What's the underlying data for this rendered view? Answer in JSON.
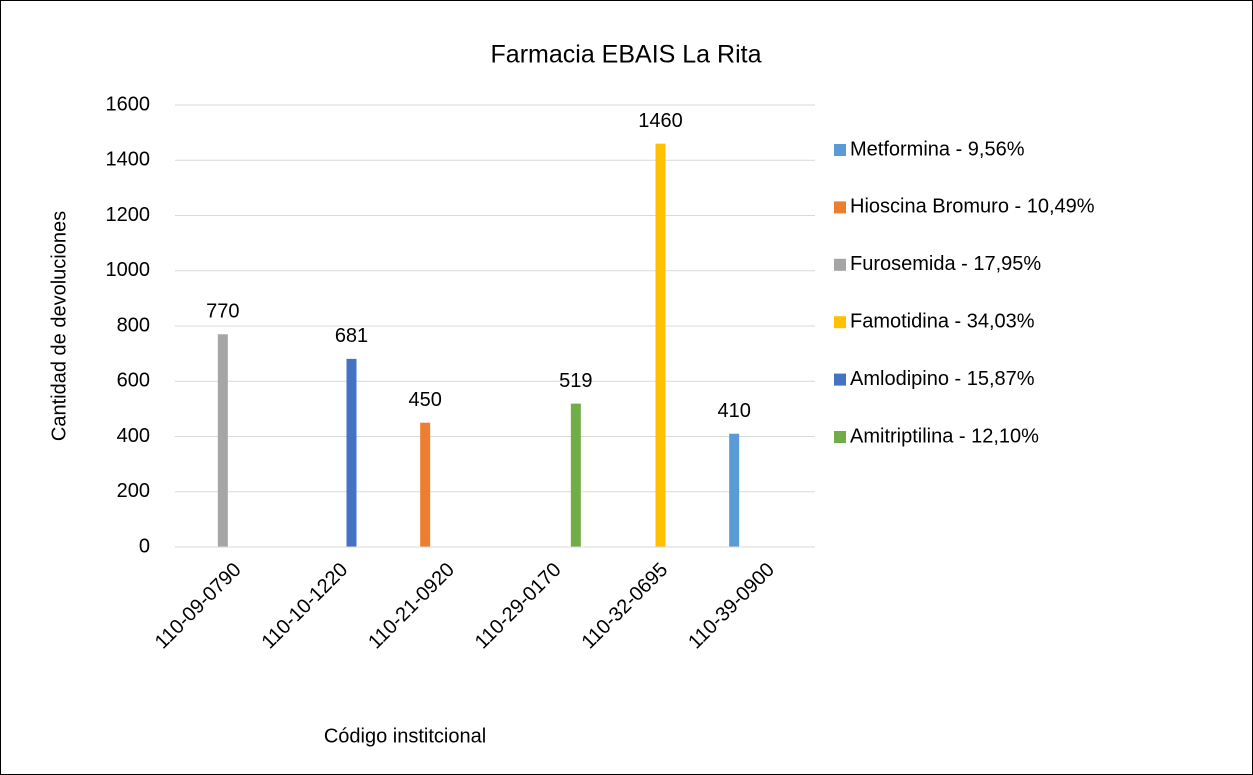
{
  "chart_data": {
    "type": "bar",
    "title": "Farmacia EBAIS La Rita",
    "x_label": "Código institcional",
    "y_label": "Cantidad de devoluciones",
    "categories": [
      "110-09-0790",
      "110-10-1220",
      "110-21-0920",
      "110-29-0170",
      "110-32-0695",
      "110-39-0900"
    ],
    "series": [
      {
        "name": "Metformina - 9,56%",
        "color": "#5b9bd5",
        "values": [
          null,
          null,
          null,
          null,
          null,
          410
        ]
      },
      {
        "name": "Hioscina Bromuro - 10,49%",
        "color": "#ed7d31",
        "values": [
          null,
          null,
          450,
          null,
          null,
          null
        ]
      },
      {
        "name": "Furosemida - 17,95%",
        "color": "#a5a5a5",
        "values": [
          770,
          null,
          null,
          null,
          null,
          null
        ]
      },
      {
        "name": "Famotidina - 34,03%",
        "color": "#ffc000",
        "values": [
          null,
          null,
          null,
          null,
          1460,
          null
        ]
      },
      {
        "name": "Amlodipino - 15,87%",
        "color": "#4472c4",
        "values": [
          null,
          681,
          null,
          null,
          null,
          null
        ]
      },
      {
        "name": "Amitriptilina - 12,10%",
        "color": "#70ad47",
        "values": [
          null,
          null,
          null,
          519,
          null,
          null
        ]
      }
    ],
    "ylim": [
      0,
      1600
    ],
    "yticks": [
      0,
      200,
      400,
      600,
      800,
      1000,
      1200,
      1400,
      1600
    ],
    "grid": true,
    "legend": "right",
    "data_labels": true
  }
}
